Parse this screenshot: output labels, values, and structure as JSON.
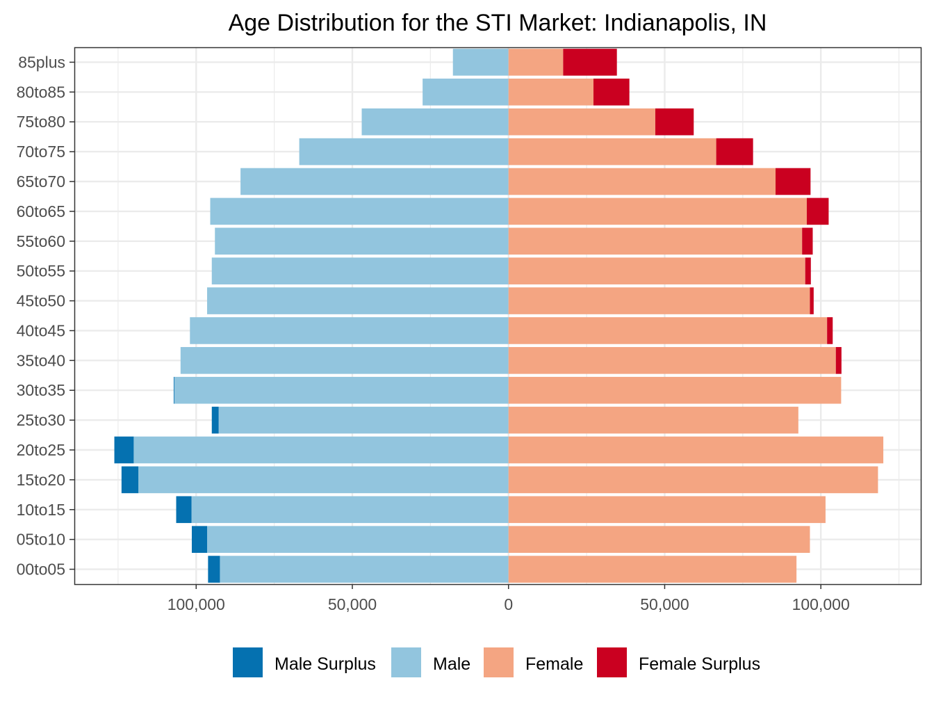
{
  "chart_data": {
    "type": "bar",
    "orientation": "horizontal",
    "title": "Age Distribution for the STI Market: Indianapolis, IN",
    "xlabel": "",
    "ylabel": "",
    "categories": [
      "85plus",
      "80to85",
      "75to80",
      "70to75",
      "65to70",
      "60to65",
      "55to60",
      "50to55",
      "45to50",
      "40to45",
      "35to40",
      "30to35",
      "25to30",
      "20to25",
      "15to20",
      "10to15",
      "05to10",
      "00to05"
    ],
    "series": [
      {
        "name": "Male Surplus",
        "color": "#0571b0",
        "values": [
          0,
          0,
          0,
          0,
          0,
          0,
          0,
          0,
          0,
          0,
          0,
          200,
          2200,
          6200,
          5400,
          4900,
          4900,
          3800
        ]
      },
      {
        "name": "Male",
        "color": "#92c5de",
        "values": [
          17800,
          27500,
          47000,
          67000,
          85800,
          95500,
          94000,
          95000,
          96500,
          102000,
          105000,
          107000,
          92800,
          120000,
          118500,
          101500,
          96500,
          92400
        ]
      },
      {
        "name": "Female",
        "color": "#f4a582",
        "values": [
          17500,
          27200,
          47000,
          66500,
          85500,
          95500,
          94000,
          95000,
          96500,
          102000,
          104800,
          106500,
          92800,
          120000,
          118300,
          101500,
          96500,
          92200
        ]
      },
      {
        "name": "Female Surplus",
        "color": "#ca0020",
        "values": [
          17200,
          11500,
          12300,
          11800,
          11200,
          7000,
          3400,
          1800,
          1200,
          1800,
          1800,
          0,
          0,
          0,
          0,
          0,
          0,
          0
        ]
      }
    ],
    "xlim": [
      -139000,
      132000
    ],
    "x_ticks": [
      -100000,
      -50000,
      0,
      50000,
      100000
    ],
    "x_tick_labels": [
      "100,000",
      "50,000",
      "0",
      "50,000",
      "100,000"
    ],
    "grid": true,
    "legend_position": "bottom"
  }
}
